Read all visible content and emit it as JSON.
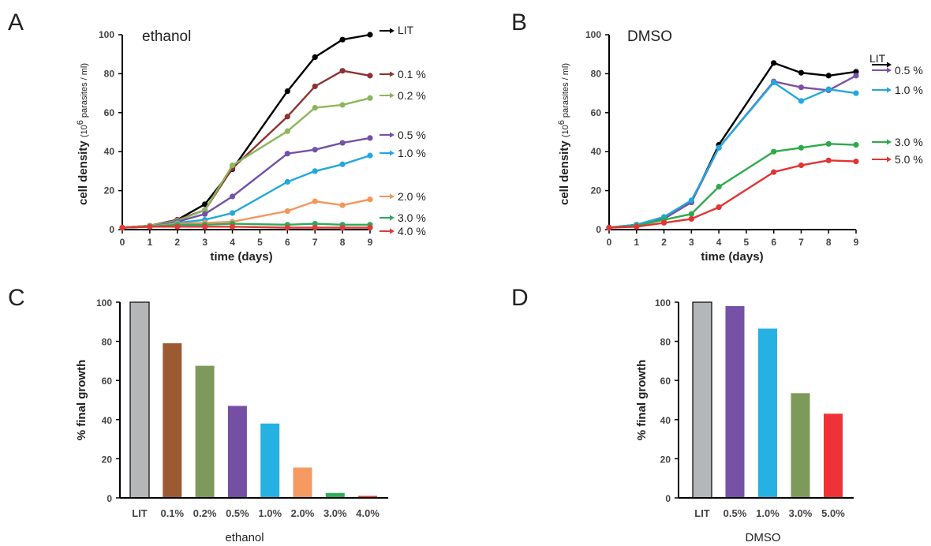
{
  "colors": {
    "LIT": "#000000",
    "ethanol_0.1": "#8c3333",
    "ethanol_0.2": "#8db65c",
    "ethanol_0.5": "#7351a6",
    "ethanol_1.0": "#22a7de",
    "ethanol_2.0": "#f4955a",
    "ethanol_3.0": "#2daa5a",
    "ethanol_4.0": "#e03a3a",
    "dmso_0.5": "#7b51a6",
    "dmso_1.0": "#22a7de",
    "dmso_3.0": "#2daa4a",
    "dmso_5.0": "#e33333",
    "bar_LIT": "#b5b6b8",
    "bar_0.1": "#9c5a33",
    "bar_0.2": "#7e9a5b",
    "bar_0.5": "#744fa3",
    "bar_1.0": "#26b1e3",
    "bar_2.0": "#f59a62",
    "bar_3.0": "#2fae5d",
    "bar_4.0": "#e33b2f",
    "bar_dmso_0.5": "#7651a6",
    "bar_dmso_1.0": "#26b1e3",
    "bar_dmso_3.0": "#7e9a5b",
    "bar_dmso_5.0": "#ee3237"
  },
  "panels": {
    "A": {
      "letter": "A",
      "title": "ethanol",
      "xlabel": "time (days)",
      "ylabel_main": "cell density ",
      "ylabel_paren": "(10",
      "ylabel_sup": "6",
      "ylabel_rest": " parasites / ml)"
    },
    "B": {
      "letter": "B",
      "title": "DMSO",
      "xlabel": "time (days)",
      "ylabel_main": "cell density ",
      "ylabel_paren": "(10",
      "ylabel_sup": "6",
      "ylabel_rest": " parasites / ml)"
    },
    "C": {
      "letter": "C",
      "xlabel": "ethanol",
      "ylabel": "% final growth"
    },
    "D": {
      "letter": "D",
      "xlabel": "DMSO",
      "ylabel": "% final growth"
    }
  },
  "chart_data": [
    {
      "type": "line",
      "panel": "A",
      "title": "ethanol",
      "xlabel": "time (days)",
      "ylabel": "cell density (10^6 parasites / ml)",
      "x": [
        0,
        1,
        2,
        3,
        4,
        6,
        7,
        8,
        9
      ],
      "xticks": [
        0,
        1,
        2,
        3,
        4,
        5,
        6,
        7,
        8,
        9
      ],
      "yticks": [
        0,
        20,
        40,
        60,
        80,
        100
      ],
      "xlim": [
        0,
        9
      ],
      "ylim": [
        0,
        100
      ],
      "series": [
        {
          "name": "LIT",
          "label": "LIT",
          "color_key": "LIT",
          "values": [
            1,
            2,
            5,
            13,
            31,
            71,
            88.5,
            97.5,
            100
          ]
        },
        {
          "name": "0.1 %",
          "label": "0.1  %",
          "color_key": "ethanol_0.1",
          "values": [
            1,
            2,
            5,
            10,
            31.5,
            58,
            73.5,
            81.5,
            79
          ]
        },
        {
          "name": "0.2 %",
          "label": "0.2 %",
          "color_key": "ethanol_0.2",
          "values": [
            1,
            2,
            4.5,
            10,
            33,
            50.5,
            62.5,
            64,
            67.5
          ]
        },
        {
          "name": "0.5 %",
          "label": "0.5  %",
          "color_key": "ethanol_0.5",
          "values": [
            1,
            1.5,
            4,
            8,
            17,
            39,
            41,
            44.5,
            47
          ]
        },
        {
          "name": "1.0 %",
          "label": "1.0  %",
          "color_key": "ethanol_1.0",
          "values": [
            1,
            1.5,
            3.5,
            5,
            8.5,
            24.5,
            30,
            33.5,
            38
          ]
        },
        {
          "name": "2.0 %",
          "label": "2.0  %",
          "color_key": "ethanol_2.0",
          "values": [
            1,
            1.5,
            3,
            3.5,
            4,
            9.5,
            14.5,
            12.5,
            15.5
          ]
        },
        {
          "name": "3.0 %",
          "label": "3.0  %",
          "color_key": "ethanol_3.0",
          "values": [
            1,
            1.5,
            2.5,
            2.5,
            3,
            2.5,
            3,
            2.5,
            2.5
          ]
        },
        {
          "name": "4.0 %",
          "label": "4.0  %",
          "color_key": "ethanol_4.0",
          "values": [
            1,
            1.5,
            1.5,
            1.5,
            1.5,
            1,
            1,
            1,
            1
          ]
        }
      ]
    },
    {
      "type": "line",
      "panel": "B",
      "title": "DMSO",
      "xlabel": "time (days)",
      "ylabel": "cell density (10^6 parasites / ml)",
      "x": [
        0,
        1,
        2,
        3,
        4,
        6,
        7,
        8,
        9
      ],
      "xticks": [
        0,
        1,
        2,
        3,
        4,
        5,
        6,
        7,
        8,
        9
      ],
      "yticks": [
        0,
        20,
        40,
        60,
        80,
        100
      ],
      "xlim": [
        0,
        9
      ],
      "ylim": [
        0,
        100
      ],
      "series": [
        {
          "name": "LIT",
          "label": "LIT",
          "color_key": "LIT",
          "values": [
            1,
            2.5,
            6,
            14,
            43.5,
            85.5,
            80.5,
            79,
            81
          ]
        },
        {
          "name": "0.5 %",
          "label": "0.5  %",
          "color_key": "dmso_0.5",
          "values": [
            1,
            2.5,
            5.5,
            14,
            42,
            76,
            73,
            71.5,
            79
          ]
        },
        {
          "name": "1.0 %",
          "label": "1.0  %",
          "color_key": "dmso_1.0",
          "values": [
            1,
            2.5,
            6.5,
            15,
            42,
            75.5,
            66,
            72,
            70
          ]
        },
        {
          "name": "3.0 %",
          "label": "3.0  %",
          "color_key": "dmso_3.0",
          "values": [
            1,
            2,
            5,
            8,
            22,
            40,
            42,
            44,
            43.5
          ]
        },
        {
          "name": "5.0 %",
          "label": "5.0  %",
          "color_key": "dmso_5.0",
          "values": [
            1,
            1.5,
            3.5,
            5.5,
            11.5,
            29.5,
            33,
            35.5,
            35
          ]
        }
      ]
    },
    {
      "type": "bar",
      "panel": "C",
      "xlabel": "ethanol",
      "ylabel": "% final growth",
      "ylim": [
        0,
        100
      ],
      "yticks": [
        0,
        20,
        40,
        60,
        80,
        100
      ],
      "categories": [
        "LIT",
        "0.1%",
        "0.2%",
        "0.5%",
        "1.0%",
        "2.0%",
        "3.0%",
        "4.0%"
      ],
      "values": [
        100,
        79,
        67.5,
        47,
        38,
        15.5,
        2.5,
        1
      ],
      "color_keys": [
        "bar_LIT",
        "bar_0.1",
        "bar_0.2",
        "bar_0.5",
        "bar_1.0",
        "bar_2.0",
        "bar_3.0",
        "bar_4.0"
      ]
    },
    {
      "type": "bar",
      "panel": "D",
      "xlabel": "DMSO",
      "ylabel": "% final growth",
      "ylim": [
        0,
        100
      ],
      "yticks": [
        0,
        20,
        40,
        60,
        80,
        100
      ],
      "categories": [
        "LIT",
        "0.5%",
        "1.0%",
        "3.0%",
        "5.0%"
      ],
      "values": [
        100,
        98,
        86.5,
        53.5,
        43
      ],
      "color_keys": [
        "bar_LIT",
        "bar_dmso_0.5",
        "bar_dmso_1.0",
        "bar_dmso_3.0",
        "bar_dmso_5.0"
      ]
    }
  ]
}
